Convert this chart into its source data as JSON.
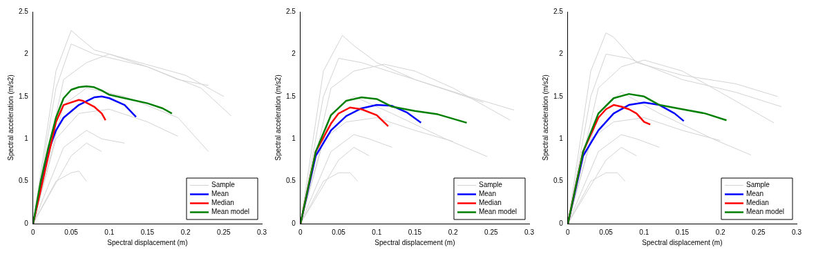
{
  "chart_data": [
    {
      "type": "line",
      "xlabel": "Spectral displacement (m)",
      "ylabel": "Spectral acceleration (m/s2)",
      "xlim": [
        0,
        0.3
      ],
      "ylim": [
        0,
        2.5
      ],
      "xticks": [
        0,
        0.05,
        0.1,
        0.15,
        0.2,
        0.25,
        0.3
      ],
      "yticks": [
        0,
        0.5,
        1,
        1.5,
        2,
        2.5
      ],
      "grid": false,
      "legend": "bottom right",
      "marker": "none",
      "series": [
        {
          "name": "Sample",
          "color": "#d3d3d3",
          "x": [
            0,
            0.03,
            0.05,
            0.06,
            0.08,
            0.12,
            0.2,
            0.25
          ],
          "values": [
            0,
            1.8,
            2.28,
            2.2,
            2.05,
            1.95,
            1.75,
            1.5
          ]
        },
        {
          "color": "#d3d3d3",
          "x": [
            0,
            0.03,
            0.05,
            0.08,
            0.15,
            0.22,
            0.26
          ],
          "values": [
            0,
            1.6,
            2.12,
            2.0,
            1.85,
            1.6,
            1.27
          ]
        },
        {
          "color": "#d3d3d3",
          "x": [
            0,
            0.04,
            0.07,
            0.1,
            0.15,
            0.19,
            0.23
          ],
          "values": [
            0,
            1.7,
            1.9,
            2.0,
            1.85,
            1.7,
            1.63
          ]
        },
        {
          "color": "#d3d3d3",
          "x": [
            0,
            0.04,
            0.07,
            0.12,
            0.19,
            0.23
          ],
          "values": [
            0,
            1.4,
            1.6,
            1.5,
            1.25,
            0.85
          ]
        },
        {
          "color": "#d3d3d3",
          "x": [
            0,
            0.03,
            0.06,
            0.1,
            0.15,
            0.19
          ],
          "values": [
            0,
            1.0,
            1.3,
            1.35,
            1.2,
            1.03
          ]
        },
        {
          "color": "#d3d3d3",
          "x": [
            0,
            0.04,
            0.07,
            0.09,
            0.12
          ],
          "values": [
            0,
            0.9,
            1.1,
            1.0,
            0.95
          ]
        },
        {
          "color": "#d3d3d3",
          "x": [
            0,
            0.03,
            0.05,
            0.06,
            0.07
          ],
          "values": [
            0,
            0.5,
            0.6,
            0.62,
            0.5
          ]
        },
        {
          "color": "#d3d3d3",
          "x": [
            0,
            0.05,
            0.07,
            0.09
          ],
          "values": [
            0,
            0.8,
            0.95,
            0.85
          ]
        },
        {
          "name": "Mean",
          "color": "#0000ff",
          "x": [
            0,
            0.02,
            0.03,
            0.04,
            0.06,
            0.08,
            0.09,
            0.1,
            0.12,
            0.135
          ],
          "values": [
            0,
            0.85,
            1.1,
            1.25,
            1.4,
            1.49,
            1.5,
            1.48,
            1.4,
            1.26
          ]
        },
        {
          "name": "Median",
          "color": "#ff0000",
          "x": [
            0,
            0.03,
            0.04,
            0.05,
            0.06,
            0.065,
            0.08,
            0.09,
            0.095
          ],
          "values": [
            0,
            1.2,
            1.4,
            1.43,
            1.46,
            1.45,
            1.38,
            1.3,
            1.22
          ]
        },
        {
          "name": "Mean model",
          "color": "#007f00",
          "x": [
            0,
            0.01,
            0.02,
            0.03,
            0.04,
            0.05,
            0.06,
            0.07,
            0.08,
            0.09,
            0.1,
            0.12,
            0.15,
            0.17,
            0.182
          ],
          "values": [
            0,
            0.5,
            0.9,
            1.25,
            1.48,
            1.58,
            1.61,
            1.62,
            1.61,
            1.57,
            1.52,
            1.48,
            1.42,
            1.36,
            1.3
          ]
        }
      ]
    },
    {
      "type": "line",
      "xlabel": "Spectral displacement (m)",
      "ylabel": "Spectral acceleration (m/s2)",
      "xlim": [
        0,
        0.3
      ],
      "ylim": [
        0,
        2.5
      ],
      "xticks": [
        0,
        0.05,
        0.1,
        0.15,
        0.2,
        0.25,
        0.3
      ],
      "yticks": [
        0,
        0.5,
        1,
        1.5,
        2,
        2.5
      ],
      "grid": false,
      "legend": "bottom right",
      "marker": "none",
      "series": [
        {
          "name": "Sample",
          "color": "#d3d3d3",
          "x": [
            0,
            0.03,
            0.055,
            0.07,
            0.1,
            0.15,
            0.2,
            0.24
          ],
          "values": [
            0,
            1.8,
            2.22,
            2.1,
            1.9,
            1.7,
            1.55,
            1.43
          ]
        },
        {
          "color": "#d3d3d3",
          "x": [
            0,
            0.03,
            0.05,
            0.08,
            0.15,
            0.22,
            0.28
          ],
          "values": [
            0,
            1.5,
            1.95,
            1.9,
            1.7,
            1.5,
            1.34
          ]
        },
        {
          "color": "#d3d3d3",
          "x": [
            0,
            0.04,
            0.07,
            0.11,
            0.15,
            0.2,
            0.275
          ],
          "values": [
            0,
            1.6,
            1.8,
            1.88,
            1.8,
            1.6,
            1.22
          ]
        },
        {
          "color": "#d3d3d3",
          "x": [
            0,
            0.04,
            0.07,
            0.12,
            0.19,
            0.245
          ],
          "values": [
            0,
            1.3,
            1.5,
            1.3,
            1.0,
            0.79
          ]
        },
        {
          "color": "#d3d3d3",
          "x": [
            0,
            0.03,
            0.06,
            0.1,
            0.15,
            0.2
          ],
          "values": [
            0,
            1.0,
            1.2,
            1.25,
            1.1,
            0.97
          ]
        },
        {
          "color": "#d3d3d3",
          "x": [
            0,
            0.04,
            0.07,
            0.09,
            0.12
          ],
          "values": [
            0,
            0.85,
            1.05,
            1.0,
            0.9
          ]
        },
        {
          "color": "#d3d3d3",
          "x": [
            0,
            0.03,
            0.05,
            0.065,
            0.075
          ],
          "values": [
            0,
            0.5,
            0.6,
            0.6,
            0.5
          ]
        },
        {
          "color": "#d3d3d3",
          "x": [
            0,
            0.05,
            0.07,
            0.09
          ],
          "values": [
            0,
            0.75,
            0.9,
            0.8
          ]
        },
        {
          "name": "Mean",
          "color": "#0000ff",
          "x": [
            0,
            0.02,
            0.04,
            0.06,
            0.08,
            0.1,
            0.12,
            0.14,
            0.158
          ],
          "values": [
            0,
            0.8,
            1.1,
            1.27,
            1.36,
            1.4,
            1.39,
            1.31,
            1.19
          ]
        },
        {
          "name": "Median",
          "color": "#ff0000",
          "x": [
            0,
            0.02,
            0.04,
            0.05,
            0.065,
            0.08,
            0.1,
            0.115
          ],
          "values": [
            0,
            0.85,
            1.18,
            1.3,
            1.37,
            1.35,
            1.28,
            1.15
          ]
        },
        {
          "name": "Mean model",
          "color": "#007f00",
          "x": [
            0,
            0.02,
            0.04,
            0.06,
            0.08,
            0.1,
            0.12,
            0.15,
            0.18,
            0.218
          ],
          "values": [
            0,
            0.85,
            1.28,
            1.45,
            1.49,
            1.47,
            1.38,
            1.33,
            1.29,
            1.19
          ]
        }
      ]
    },
    {
      "type": "line",
      "xlabel": "Spectral displacement (m)",
      "ylabel": "Spectral acceleration (m/s2)",
      "xlim": [
        0,
        0.3
      ],
      "ylim": [
        0,
        2.5
      ],
      "xticks": [
        0,
        0.05,
        0.1,
        0.15,
        0.2,
        0.25,
        0.3
      ],
      "yticks": [
        0,
        0.5,
        1,
        1.5,
        2,
        2.5
      ],
      "grid": false,
      "legend": "bottom right",
      "marker": "none",
      "series": [
        {
          "name": "Sample",
          "color": "#d3d3d3",
          "x": [
            0,
            0.03,
            0.05,
            0.06,
            0.09,
            0.15,
            0.22,
            0.275
          ],
          "values": [
            0,
            1.8,
            2.25,
            2.2,
            1.9,
            1.75,
            1.65,
            1.5
          ]
        },
        {
          "color": "#d3d3d3",
          "x": [
            0,
            0.03,
            0.05,
            0.08,
            0.15,
            0.22,
            0.28
          ],
          "values": [
            0,
            1.5,
            2.0,
            1.95,
            1.7,
            1.55,
            1.38
          ]
        },
        {
          "color": "#d3d3d3",
          "x": [
            0,
            0.04,
            0.07,
            0.1,
            0.15,
            0.2,
            0.27
          ],
          "values": [
            0,
            1.6,
            1.85,
            1.93,
            1.8,
            1.55,
            1.19
          ]
        },
        {
          "color": "#d3d3d3",
          "x": [
            0,
            0.04,
            0.07,
            0.12,
            0.19,
            0.24
          ],
          "values": [
            0,
            1.3,
            1.55,
            1.3,
            1.0,
            0.81
          ]
        },
        {
          "color": "#d3d3d3",
          "x": [
            0,
            0.03,
            0.06,
            0.1,
            0.15,
            0.2
          ],
          "values": [
            0,
            1.0,
            1.2,
            1.25,
            1.1,
            0.98
          ]
        },
        {
          "color": "#d3d3d3",
          "x": [
            0,
            0.04,
            0.07,
            0.09,
            0.12
          ],
          "values": [
            0,
            0.85,
            1.05,
            1.0,
            0.9
          ]
        },
        {
          "color": "#d3d3d3",
          "x": [
            0,
            0.03,
            0.05,
            0.065,
            0.075
          ],
          "values": [
            0,
            0.5,
            0.6,
            0.6,
            0.5
          ]
        },
        {
          "color": "#d3d3d3",
          "x": [
            0,
            0.05,
            0.07,
            0.09
          ],
          "values": [
            0,
            0.75,
            0.9,
            0.8
          ]
        },
        {
          "name": "Mean",
          "color": "#0000ff",
          "x": [
            0,
            0.02,
            0.04,
            0.06,
            0.08,
            0.1,
            0.12,
            0.14,
            0.152
          ],
          "values": [
            0,
            0.8,
            1.1,
            1.3,
            1.4,
            1.43,
            1.4,
            1.3,
            1.21
          ]
        },
        {
          "name": "Median",
          "color": "#ff0000",
          "x": [
            0,
            0.02,
            0.04,
            0.05,
            0.06,
            0.07,
            0.08,
            0.09,
            0.1,
            0.108
          ],
          "values": [
            0,
            0.85,
            1.25,
            1.35,
            1.4,
            1.38,
            1.35,
            1.3,
            1.2,
            1.17
          ]
        },
        {
          "name": "Mean model",
          "color": "#007f00",
          "x": [
            0,
            0.02,
            0.04,
            0.06,
            0.08,
            0.1,
            0.12,
            0.15,
            0.18,
            0.208
          ],
          "values": [
            0,
            0.85,
            1.3,
            1.48,
            1.53,
            1.5,
            1.4,
            1.35,
            1.3,
            1.22
          ]
        }
      ]
    }
  ]
}
